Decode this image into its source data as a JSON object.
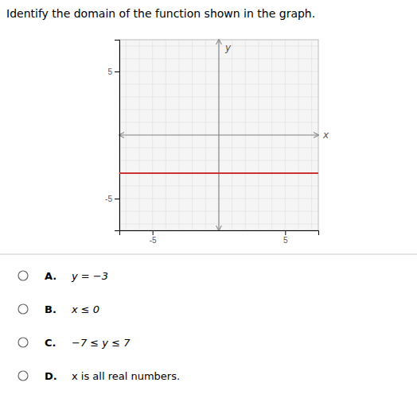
{
  "chart_data": {
    "type": "line",
    "title": "Identify the domain of the function shown in the graph.",
    "x_label": "x",
    "y_label": "y",
    "x": [
      -7.5,
      7.5
    ],
    "values": [
      -3,
      -3
    ],
    "color": "#cc3333",
    "xlim": [
      -7.5,
      7.5
    ],
    "ylim": [
      -7.5,
      7.5
    ],
    "xticks": [
      -5,
      5
    ],
    "yticks": [
      -5,
      5
    ],
    "grid": true,
    "choices": [
      {
        "label": "A.",
        "text": "y = −3"
      },
      {
        "label": "B.",
        "text": "x ≤ 0"
      },
      {
        "label": "C.",
        "text": "−7 ≤ y ≤ 7"
      },
      {
        "label": "D.",
        "text": "x is all real numbers."
      }
    ]
  }
}
